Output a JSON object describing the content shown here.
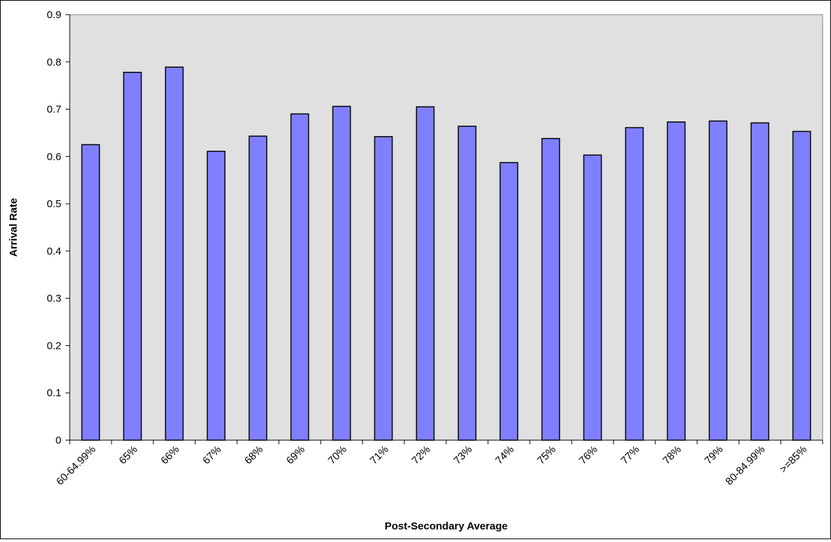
{
  "chart_data": {
    "type": "bar",
    "title": "",
    "xlabel": "Post-Secondary Average",
    "ylabel": "Arrival Rate",
    "categories": [
      "60-64.99%",
      "65%",
      "66%",
      "67%",
      "68%",
      "69%",
      "70%",
      "71%",
      "72%",
      "73%",
      "74%",
      "75%",
      "76%",
      "77%",
      "78%",
      "79%",
      "80-84.99%",
      ">=85%"
    ],
    "values": [
      0.625,
      0.778,
      0.789,
      0.611,
      0.643,
      0.69,
      0.706,
      0.642,
      0.705,
      0.664,
      0.587,
      0.638,
      0.603,
      0.661,
      0.673,
      0.675,
      0.671,
      0.653
    ],
    "ylim": [
      0,
      0.9
    ],
    "yticks": [
      "0",
      "0.1",
      "0.2",
      "0.3",
      "0.4",
      "0.5",
      "0.6",
      "0.7",
      "0.8",
      "0.9"
    ],
    "grid": false,
    "legend": "none",
    "colors": {
      "bar_fill": "#8080ff",
      "bar_stroke": "#000000",
      "plot_background": "#e0e0e0"
    }
  }
}
